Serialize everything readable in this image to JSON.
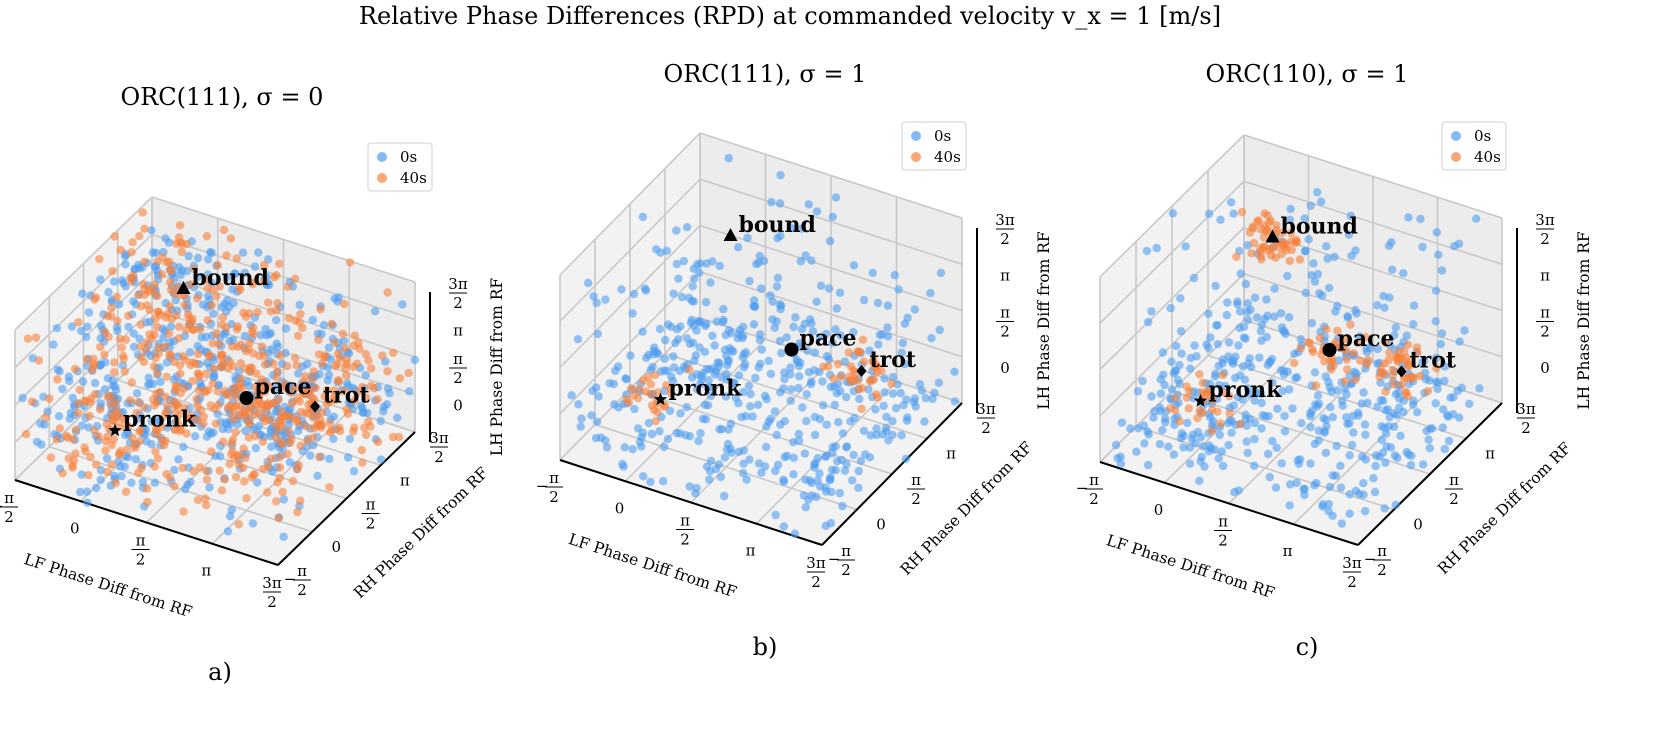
{
  "figure": {
    "title": "Relative Phase Differences (RPD) at commanded velocity v_x = 1 [m/s]"
  },
  "legend": {
    "entries": [
      {
        "label": "0s",
        "color": "#4e9cf0"
      },
      {
        "label": "40s",
        "color": "#f9803a"
      }
    ]
  },
  "chart_data": [
    {
      "type": "scatter",
      "panel": "a)",
      "title": "ORC(111), σ = 0",
      "xlabel": "LF Phase Diff from RF",
      "ylabel": "RH Phase Diff from RF",
      "zlabel": "LH Phase Diff from RF",
      "xlim": [
        -1.5708,
        4.7124
      ],
      "ylim": [
        -1.5708,
        4.7124
      ],
      "zlim": [
        -1.5708,
        4.7124
      ],
      "tick_labels": [
        "−π/2",
        "0",
        "π/2",
        "π",
        "3π/2"
      ],
      "grid": true,
      "legend_position": "upper-right",
      "series": [
        {
          "name": "0s",
          "color": "#4e9cf0",
          "alpha": 0.6,
          "count": 600,
          "distribution": "spread over whole cube, denser near pace/trot"
        },
        {
          "name": "40s",
          "color": "#f9803a",
          "alpha": 0.6,
          "count": 600,
          "distribution": "spread over whole cube"
        }
      ],
      "gaits": [
        {
          "name": "bound",
          "marker": "triangle",
          "x": 0,
          "y": 3.1416,
          "z": 3.1416
        },
        {
          "name": "pace",
          "marker": "circle",
          "x": 3.1416,
          "y": 0,
          "z": 3.1416
        },
        {
          "name": "trot",
          "marker": "diamond",
          "x": 3.1416,
          "y": 3.1416,
          "z": 0
        },
        {
          "name": "pronk",
          "marker": "star",
          "x": 0,
          "y": 0,
          "z": 0
        }
      ]
    },
    {
      "type": "scatter",
      "panel": "b)",
      "title": "ORC(111), σ = 1",
      "xlabel": "LF Phase Diff from RF",
      "ylabel": "RH Phase Diff from RF",
      "zlabel": "LH Phase Diff from RF",
      "xlim": [
        -1.5708,
        4.7124
      ],
      "ylim": [
        -1.5708,
        4.7124
      ],
      "zlim": [
        -1.5708,
        4.7124
      ],
      "tick_labels": [
        "−π/2",
        "0",
        "π/2",
        "π",
        "3π/2"
      ],
      "grid": true,
      "legend_position": "upper-right",
      "series": [
        {
          "name": "0s",
          "color": "#4e9cf0",
          "alpha": 0.6,
          "count": 500,
          "distribution": "spread, concentrated on the pronk-trot plane"
        },
        {
          "name": "40s",
          "color": "#f9803a",
          "alpha": 0.6,
          "count": 60,
          "distribution": "small clusters near pronk and trot"
        }
      ],
      "gaits": [
        {
          "name": "bound",
          "marker": "triangle",
          "x": 0,
          "y": 3.1416,
          "z": 3.1416
        },
        {
          "name": "pace",
          "marker": "circle",
          "x": 3.1416,
          "y": 0,
          "z": 3.1416
        },
        {
          "name": "trot",
          "marker": "diamond",
          "x": 3.1416,
          "y": 3.1416,
          "z": 0
        },
        {
          "name": "pronk",
          "marker": "star",
          "x": 0,
          "y": 0,
          "z": 0
        }
      ]
    },
    {
      "type": "scatter",
      "panel": "c)",
      "title": "ORC(110), σ = 1",
      "xlabel": "LF Phase Diff from RF",
      "ylabel": "RH Phase Diff from RF",
      "zlabel": "LH Phase Diff from RF",
      "xlim": [
        -1.5708,
        4.7124
      ],
      "ylim": [
        -1.5708,
        4.7124
      ],
      "zlim": [
        -1.5708,
        4.7124
      ],
      "tick_labels": [
        "−π/2",
        "0",
        "π/2",
        "π",
        "3π/2"
      ],
      "grid": true,
      "legend_position": "upper-right",
      "series": [
        {
          "name": "0s",
          "color": "#4e9cf0",
          "alpha": 0.6,
          "count": 500,
          "distribution": "spread over cube"
        },
        {
          "name": "40s",
          "color": "#f9803a",
          "alpha": 0.6,
          "count": 160,
          "distribution": "clusters near trot and upper corners"
        }
      ],
      "gaits": [
        {
          "name": "bound",
          "marker": "triangle",
          "x": 0,
          "y": 3.1416,
          "z": 3.1416
        },
        {
          "name": "pace",
          "marker": "circle",
          "x": 3.1416,
          "y": 0,
          "z": 3.1416
        },
        {
          "name": "trot",
          "marker": "diamond",
          "x": 3.1416,
          "y": 3.1416,
          "z": 0
        },
        {
          "name": "pronk",
          "marker": "star",
          "x": 0,
          "y": 0,
          "z": 0
        }
      ]
    }
  ]
}
